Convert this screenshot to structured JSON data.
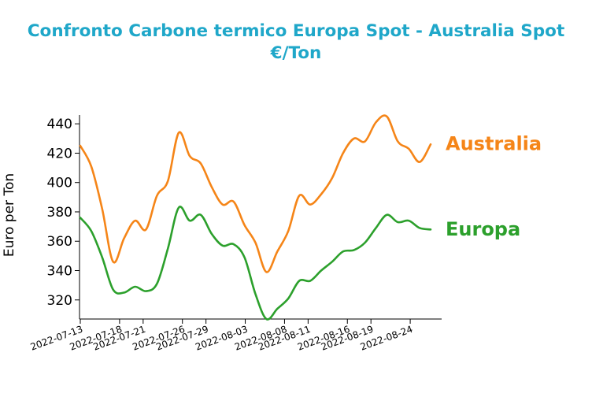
{
  "chart_data": {
    "type": "line",
    "title": "Confronto Carbone termico Europa Spot - Australia Spot",
    "subtitle": "€/Ton",
    "xlabel": "",
    "ylabel": "Euro per Ton",
    "ylim": [
      307,
      446
    ],
    "yticks": [
      320,
      340,
      360,
      380,
      400,
      420,
      440
    ],
    "xlim": [
      "2022-07-13",
      "2022-08-28"
    ],
    "xtick_labels": [
      "2022-07-13",
      "2022-07-18",
      "2022-07-21",
      "2022-07-26",
      "2022-07-29",
      "2022-08-03",
      "2022-08-08",
      "2022-08-11",
      "2022-08-16",
      "2022-08-19",
      "2022-08-24"
    ],
    "grid": false,
    "legend": "inline labels at right end of lines",
    "colors": {
      "title": "#1fa7c9",
      "australia": "#f58518",
      "europa": "#2ca02c"
    },
    "series": [
      {
        "name": "Australia",
        "points": [
          [
            "2022-07-13",
            425
          ],
          [
            "2022-07-14",
            411
          ],
          [
            "2022-07-15",
            382
          ],
          [
            "2022-07-16",
            346
          ],
          [
            "2022-07-17",
            362
          ],
          [
            "2022-07-18",
            374
          ],
          [
            "2022-07-19",
            368
          ],
          [
            "2022-07-20",
            391
          ],
          [
            "2022-07-21",
            401
          ],
          [
            "2022-07-22",
            434
          ],
          [
            "2022-07-23",
            418
          ],
          [
            "2022-07-24",
            413
          ],
          [
            "2022-07-25",
            397
          ],
          [
            "2022-07-26",
            385
          ],
          [
            "2022-07-27",
            387
          ],
          [
            "2022-07-28",
            371
          ],
          [
            "2022-07-29",
            359
          ],
          [
            "2022-07-30",
            339
          ],
          [
            "2022-07-31",
            353
          ],
          [
            "2022-08-01",
            367
          ],
          [
            "2022-08-02",
            391
          ],
          [
            "2022-08-03",
            385
          ],
          [
            "2022-08-04",
            392
          ],
          [
            "2022-08-05",
            403
          ],
          [
            "2022-08-06",
            420
          ],
          [
            "2022-08-07",
            430
          ],
          [
            "2022-08-08",
            428
          ],
          [
            "2022-08-09",
            441
          ],
          [
            "2022-08-10",
            445
          ],
          [
            "2022-08-11",
            428
          ],
          [
            "2022-08-12",
            423
          ],
          [
            "2022-08-13",
            414
          ],
          [
            "2022-08-14",
            426
          ]
        ]
      },
      {
        "name": "Europa",
        "points": [
          [
            "2022-07-13",
            376
          ],
          [
            "2022-07-14",
            367
          ],
          [
            "2022-07-15",
            349
          ],
          [
            "2022-07-16",
            327
          ],
          [
            "2022-07-17",
            325
          ],
          [
            "2022-07-18",
            329
          ],
          [
            "2022-07-19",
            326
          ],
          [
            "2022-07-20",
            331
          ],
          [
            "2022-07-21",
            355
          ],
          [
            "2022-07-22",
            383
          ],
          [
            "2022-07-23",
            374
          ],
          [
            "2022-07-24",
            378
          ],
          [
            "2022-07-25",
            365
          ],
          [
            "2022-07-26",
            357
          ],
          [
            "2022-07-27",
            358
          ],
          [
            "2022-07-28",
            349
          ],
          [
            "2022-07-29",
            324
          ],
          [
            "2022-07-30",
            307
          ],
          [
            "2022-07-31",
            314
          ],
          [
            "2022-08-01",
            321
          ],
          [
            "2022-08-02",
            333
          ],
          [
            "2022-08-03",
            333
          ],
          [
            "2022-08-04",
            340
          ],
          [
            "2022-08-05",
            346
          ],
          [
            "2022-08-06",
            353
          ],
          [
            "2022-08-07",
            354
          ],
          [
            "2022-08-08",
            359
          ],
          [
            "2022-08-09",
            369
          ],
          [
            "2022-08-10",
            378
          ],
          [
            "2022-08-11",
            373
          ],
          [
            "2022-08-12",
            374
          ],
          [
            "2022-08-13",
            369
          ],
          [
            "2022-08-14",
            368
          ]
        ]
      }
    ]
  }
}
